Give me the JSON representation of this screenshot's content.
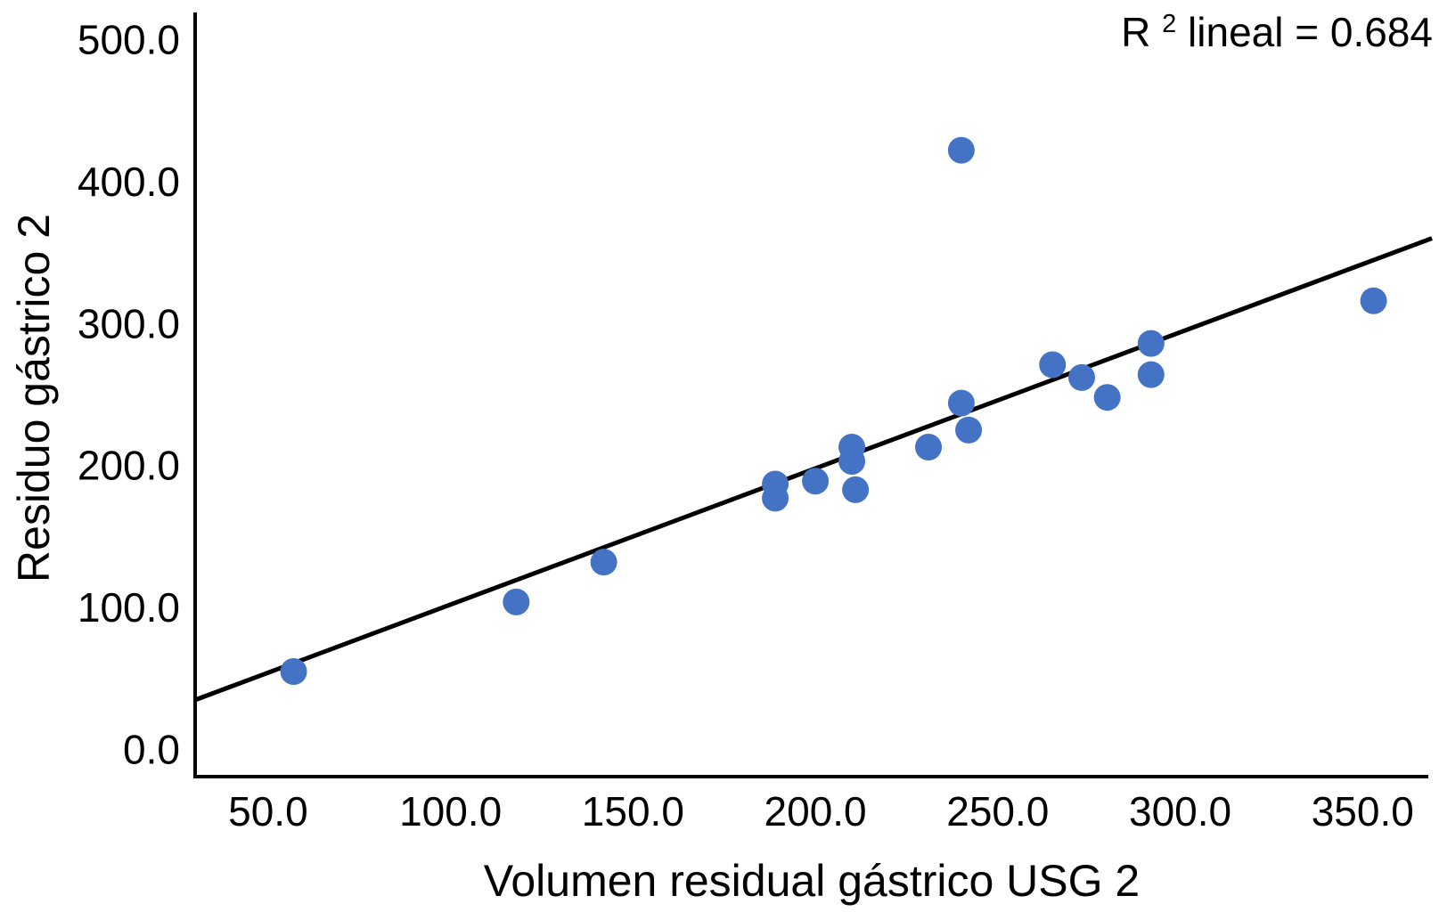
{
  "chart_data": {
    "type": "scatter",
    "title": "",
    "xlabel": "Volumen residual gástrico USG 2",
    "ylabel": "Residuo gástrico 2",
    "annotation": {
      "text": "R² lineal = 0.684",
      "prefix": "R",
      "sup": "2",
      "rest": " lineal = 0.684"
    },
    "r_squared": 0.684,
    "xlim": [
      30,
      368
    ],
    "ylim": [
      -19,
      519
    ],
    "grid": false,
    "legend_position": "none",
    "x_ticks": {
      "values": [
        50,
        100,
        150,
        200,
        250,
        300,
        350
      ],
      "labels": [
        "50.0",
        "100.0",
        "150.0",
        "200.0",
        "250.0",
        "300.0",
        "350.0"
      ]
    },
    "y_ticks": {
      "values": [
        0,
        100,
        200,
        300,
        400,
        500
      ],
      "labels": [
        "0.0",
        "100.0",
        "200.0",
        "300.0",
        "400.0",
        "500.0"
      ]
    },
    "points": [
      {
        "x": 57,
        "y": 55
      },
      {
        "x": 118,
        "y": 104
      },
      {
        "x": 142,
        "y": 132
      },
      {
        "x": 189,
        "y": 187
      },
      {
        "x": 189,
        "y": 177
      },
      {
        "x": 200,
        "y": 189
      },
      {
        "x": 210,
        "y": 213
      },
      {
        "x": 210,
        "y": 203
      },
      {
        "x": 211,
        "y": 183
      },
      {
        "x": 231,
        "y": 213
      },
      {
        "x": 240,
        "y": 244
      },
      {
        "x": 242,
        "y": 225
      },
      {
        "x": 265,
        "y": 271
      },
      {
        "x": 273,
        "y": 262
      },
      {
        "x": 280,
        "y": 248
      },
      {
        "x": 292,
        "y": 286
      },
      {
        "x": 292,
        "y": 264
      },
      {
        "x": 353,
        "y": 316
      },
      {
        "x": 240,
        "y": 422
      }
    ],
    "regression_line": {
      "x1": 30,
      "y1": 35,
      "x2": 369,
      "y2": 360
    },
    "colors": {
      "point_fill": "#4472C4",
      "line": "#000000",
      "axis": "#000000",
      "text": "#000000",
      "background": "#FFFFFF"
    }
  }
}
